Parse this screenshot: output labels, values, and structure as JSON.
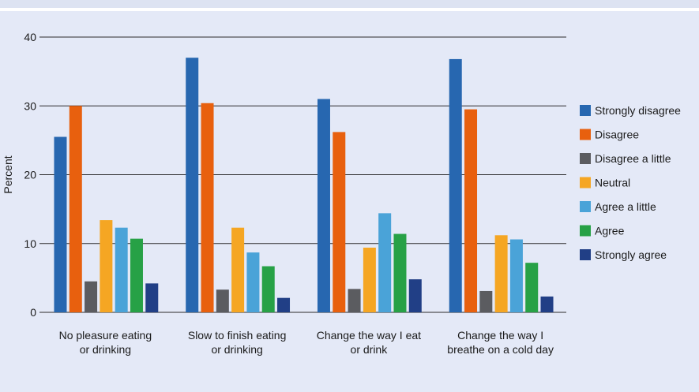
{
  "chart_data": {
    "type": "bar",
    "title": "",
    "xlabel": "",
    "ylabel": "Percent",
    "ylim": [
      0,
      40
    ],
    "yticks": [
      0,
      10,
      20,
      30,
      40
    ],
    "grid": true,
    "legend_position": "right",
    "categories": [
      [
        "No pleasure eating",
        "or drinking"
      ],
      [
        "Slow to finish eating",
        "or drinking"
      ],
      [
        "Change the way I eat",
        "or drink"
      ],
      [
        "Change the way I",
        "breathe on a cold day"
      ]
    ],
    "series": [
      {
        "name": "Strongly disagree",
        "color": "#2767b0",
        "values": [
          25.5,
          37.0,
          31.0,
          36.8
        ]
      },
      {
        "name": "Disagree",
        "color": "#e8600e",
        "values": [
          30.0,
          30.4,
          26.2,
          29.5
        ]
      },
      {
        "name": "Disagree a little",
        "color": "#5b5c60",
        "values": [
          4.5,
          3.3,
          3.4,
          3.1
        ]
      },
      {
        "name": "Neutral",
        "color": "#f5a623",
        "values": [
          13.4,
          12.3,
          9.4,
          11.2
        ]
      },
      {
        "name": "Agree a little",
        "color": "#4aa3d8",
        "values": [
          12.3,
          8.7,
          14.4,
          10.6
        ]
      },
      {
        "name": "Agree",
        "color": "#27a146",
        "values": [
          10.7,
          6.7,
          11.4,
          7.2
        ]
      },
      {
        "name": "Strongly agree",
        "color": "#213f86",
        "values": [
          4.2,
          2.1,
          4.8,
          2.3
        ]
      }
    ]
  }
}
